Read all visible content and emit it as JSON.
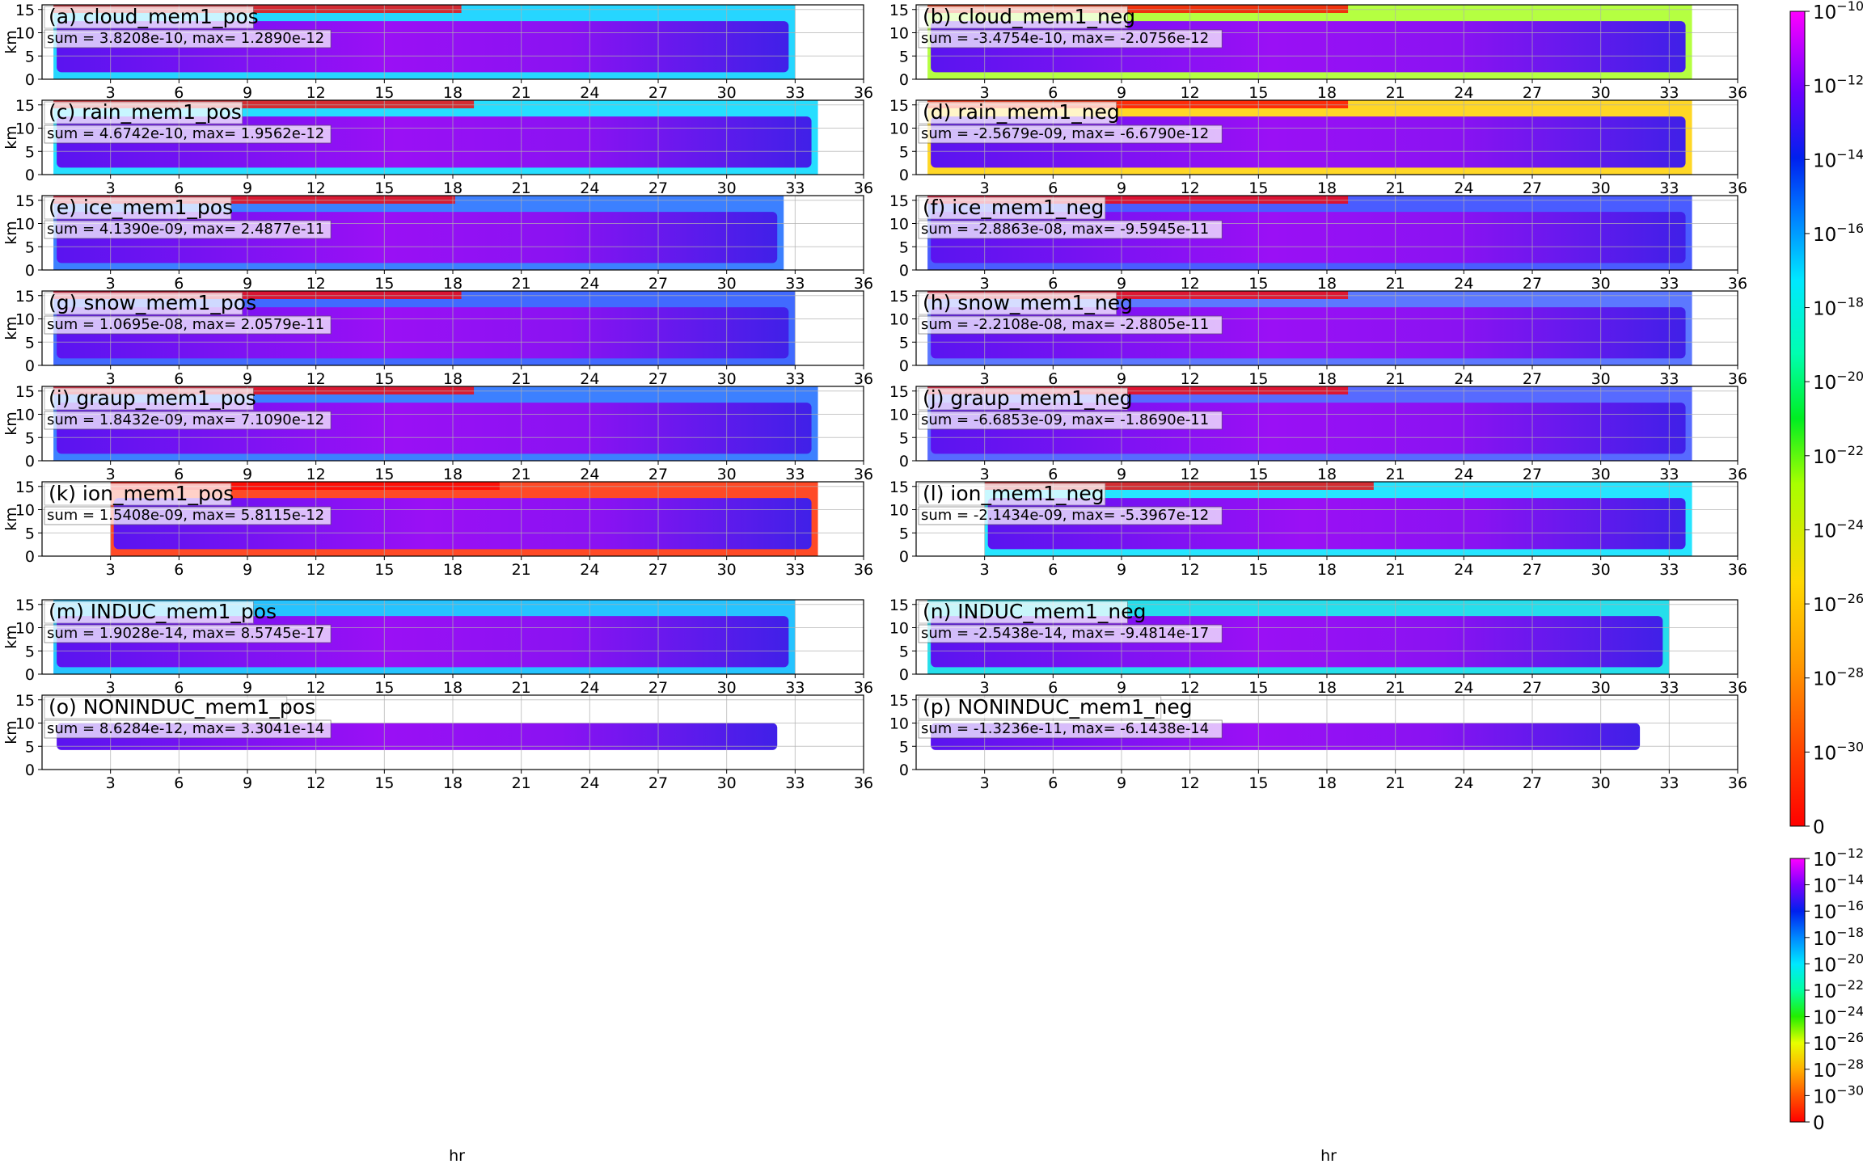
{
  "figure": {
    "xlabel": "hr",
    "ylabel": "km",
    "x_ticks": [
      "3",
      "6",
      "9",
      "12",
      "15",
      "18",
      "21",
      "24",
      "27",
      "30",
      "33",
      "36"
    ],
    "y_ticks": [
      "0",
      "5",
      "10",
      "15"
    ],
    "colorbar_top": {
      "labels": [
        "10^-10",
        "10^-12",
        "10^-14",
        "10^-16",
        "10^-18",
        "10^-20",
        "10^-22",
        "10^-24",
        "10^-26",
        "10^-28",
        "10^-30",
        "0"
      ]
    },
    "colorbar_bottom": {
      "labels": [
        "10^-12",
        "10^-14",
        "10^-16",
        "10^-18",
        "10^-20",
        "10^-22",
        "10^-24",
        "10^-26",
        "10^-28",
        "10^-30",
        "0"
      ]
    }
  },
  "chart_data": [
    {
      "type": "heatmap",
      "title": "(a) cloud_mem1_pos",
      "annotation": "sum = 3.8208e-10, max= 1.2890e-12",
      "xlim": [
        0,
        36
      ],
      "ylim": [
        0,
        16
      ],
      "data_x_range": [
        0.5,
        33
      ],
      "core_value": "~1e-13",
      "colorscale": "log, 1e-31 to 1e-9"
    },
    {
      "type": "heatmap",
      "title": "(b) cloud_mem1_neg",
      "annotation": "sum = -3.4754e-10, max= -2.0756e-12",
      "xlim": [
        0,
        36
      ],
      "ylim": [
        0,
        16
      ],
      "data_x_range": [
        0.5,
        34
      ],
      "core_value": "~1e-13"
    },
    {
      "type": "heatmap",
      "title": "(c) rain_mem1_pos",
      "annotation": "sum = 4.6742e-10, max= 1.9562e-12",
      "xlim": [
        0,
        36
      ],
      "ylim": [
        0,
        16
      ],
      "data_x_range": [
        0.5,
        34
      ],
      "core_value": "~1e-13"
    },
    {
      "type": "heatmap",
      "title": "(d) rain_mem1_neg",
      "annotation": "sum = -2.5679e-09, max= -6.6790e-12",
      "xlim": [
        0,
        36
      ],
      "ylim": [
        0,
        16
      ],
      "data_x_range": [
        0.5,
        34
      ],
      "core_value": "~1e-12"
    },
    {
      "type": "heatmap",
      "title": "(e) ice_mem1_pos",
      "annotation": "sum = 4.1390e-09, max= 2.4877e-11",
      "xlim": [
        0,
        36
      ],
      "ylim": [
        0,
        16
      ],
      "data_x_range": [
        0.5,
        32.5
      ],
      "core_value": "~1e-12"
    },
    {
      "type": "heatmap",
      "title": "(f) ice_mem1_neg",
      "annotation": "sum = -2.8863e-08, max= -9.5945e-11",
      "xlim": [
        0,
        36
      ],
      "ylim": [
        0,
        16
      ],
      "data_x_range": [
        0.5,
        34
      ],
      "core_value": "~1e-11"
    },
    {
      "type": "heatmap",
      "title": "(g) snow_mem1_pos",
      "annotation": "sum = 1.0695e-08, max= 2.0579e-11",
      "xlim": [
        0,
        36
      ],
      "ylim": [
        0,
        16
      ],
      "data_x_range": [
        0.5,
        33
      ],
      "core_value": "~1e-11"
    },
    {
      "type": "heatmap",
      "title": "(h) snow_mem1_neg",
      "annotation": "sum = -2.2108e-08, max= -2.8805e-11",
      "xlim": [
        0,
        36
      ],
      "ylim": [
        0,
        16
      ],
      "data_x_range": [
        0.5,
        34
      ],
      "core_value": "~1e-11"
    },
    {
      "type": "heatmap",
      "title": "(i) graup_mem1_pos",
      "annotation": "sum = 1.8432e-09, max= 7.1090e-12",
      "xlim": [
        0,
        36
      ],
      "ylim": [
        0,
        16
      ],
      "data_x_range": [
        0.5,
        34
      ],
      "core_value": "~1e-12"
    },
    {
      "type": "heatmap",
      "title": "(j) graup_mem1_neg",
      "annotation": "sum = -6.6853e-09, max= -1.8690e-11",
      "xlim": [
        0,
        36
      ],
      "ylim": [
        0,
        16
      ],
      "data_x_range": [
        0.5,
        34
      ],
      "core_value": "~1e-12"
    },
    {
      "type": "heatmap",
      "title": "(k) ion_mem1_pos",
      "annotation": "sum = 1.5408e-09, max= 5.8115e-12",
      "xlim": [
        0,
        36
      ],
      "ylim": [
        0,
        16
      ],
      "data_x_range": [
        3,
        34
      ],
      "core_value": "~1e-12"
    },
    {
      "type": "heatmap",
      "title": "(l) ion_mem1_neg",
      "annotation": "sum = -2.1434e-09, max= -5.3967e-12",
      "xlim": [
        0,
        36
      ],
      "ylim": [
        0,
        16
      ],
      "data_x_range": [
        3,
        34
      ],
      "core_value": "~1e-13"
    },
    {
      "type": "heatmap",
      "title": "(m) INDUC_mem1_pos",
      "annotation": "sum = 1.9028e-14, max= 8.5745e-17",
      "xlim": [
        0,
        36
      ],
      "ylim": [
        0,
        16
      ],
      "data_x_range": [
        0.5,
        33
      ],
      "core_value": "~1e-17",
      "colorscale": "log, 1e-31 to 1e-12"
    },
    {
      "type": "heatmap",
      "title": "(n) INDUC_mem1_neg",
      "annotation": "sum = -2.5438e-14, max= -9.4814e-17",
      "xlim": [
        0,
        36
      ],
      "ylim": [
        0,
        16
      ],
      "data_x_range": [
        0.5,
        33
      ],
      "core_value": "~1e-17"
    },
    {
      "type": "heatmap",
      "title": "(o) NONINDUC_mem1_pos",
      "annotation": "sum = 8.6284e-12, max= 3.3041e-14",
      "xlim": [
        0,
        36
      ],
      "ylim": [
        0,
        16
      ],
      "data_x_range": [
        0.5,
        32.5
      ],
      "core_value": "~1e-14"
    },
    {
      "type": "heatmap",
      "title": "(p) NONINDUC_mem1_neg",
      "annotation": "sum = -1.3236e-11, max= -6.1438e-14",
      "xlim": [
        0,
        36
      ],
      "ylim": [
        0,
        16
      ],
      "data_x_range": [
        0.5,
        32
      ],
      "core_value": "~1e-14"
    }
  ]
}
